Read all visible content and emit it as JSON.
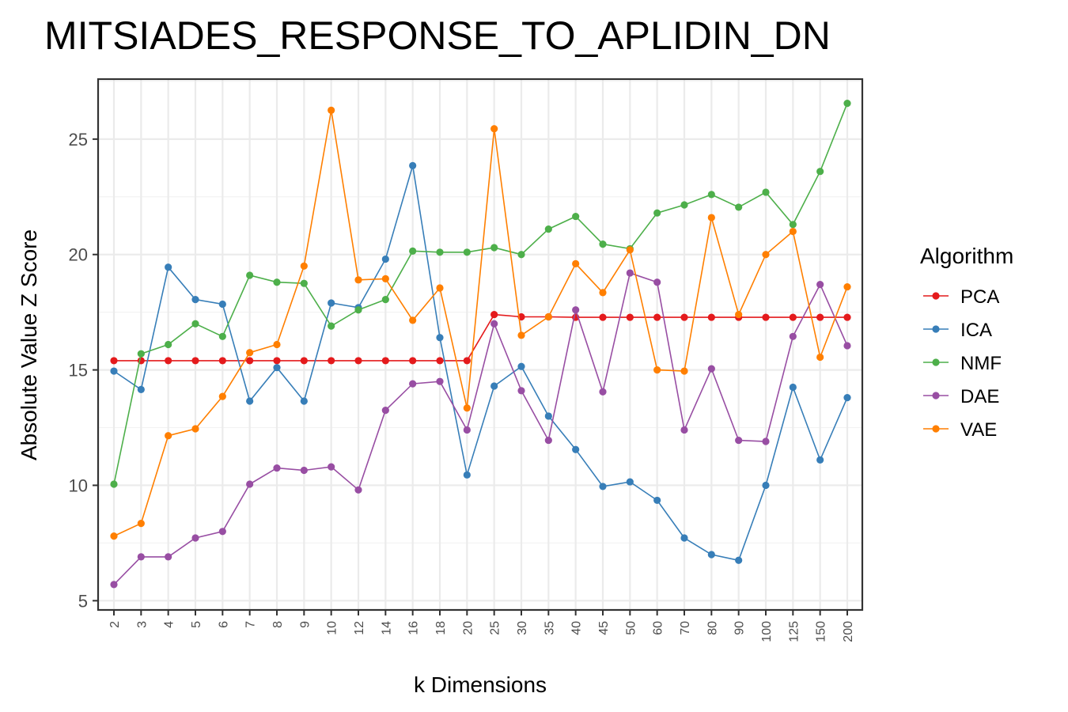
{
  "chart_data": {
    "type": "line",
    "title": "MITSIADES_RESPONSE_TO_APLIDIN_DN",
    "xlabel": "k Dimensions",
    "ylabel": "Absolute Value Z Score",
    "categories": [
      "2",
      "3",
      "4",
      "5",
      "6",
      "7",
      "8",
      "9",
      "10",
      "12",
      "14",
      "16",
      "18",
      "20",
      "25",
      "30",
      "35",
      "40",
      "45",
      "50",
      "60",
      "70",
      "80",
      "90",
      "100",
      "125",
      "150",
      "200"
    ],
    "y_ticks": [
      5,
      10,
      15,
      20,
      25
    ],
    "ylim": [
      4.6,
      27.6
    ],
    "grid": true,
    "legend": {
      "title": "Algorithm",
      "position": "right"
    },
    "series": [
      {
        "name": "PCA",
        "color": "#E41A1C",
        "values": [
          15.4,
          15.4,
          15.4,
          15.4,
          15.4,
          15.4,
          15.4,
          15.4,
          15.4,
          15.4,
          15.4,
          15.4,
          15.4,
          15.4,
          17.4,
          17.3,
          17.3,
          17.28,
          17.28,
          17.28,
          17.28,
          17.28,
          17.28,
          17.28,
          17.28,
          17.28,
          17.28,
          17.28
        ]
      },
      {
        "name": "ICA",
        "color": "#377EB8",
        "values": [
          14.95,
          14.15,
          19.45,
          18.05,
          17.85,
          13.65,
          15.1,
          13.65,
          17.9,
          17.7,
          19.8,
          23.85,
          16.4,
          10.45,
          14.3,
          15.15,
          13.0,
          11.55,
          9.95,
          10.15,
          9.35,
          7.72,
          7.0,
          6.75,
          10.0,
          14.25,
          11.1,
          13.8
        ]
      },
      {
        "name": "NMF",
        "color": "#4DAF4A",
        "values": [
          10.05,
          15.7,
          16.1,
          17.0,
          16.45,
          19.1,
          18.8,
          18.75,
          16.9,
          17.6,
          18.05,
          20.15,
          20.1,
          20.1,
          20.3,
          20.0,
          21.1,
          21.65,
          20.45,
          20.25,
          21.8,
          22.15,
          22.6,
          22.05,
          22.7,
          21.3,
          23.6,
          26.55
        ]
      },
      {
        "name": "DAE",
        "color": "#984EA3",
        "values": [
          5.7,
          6.9,
          6.9,
          7.72,
          8.0,
          10.05,
          10.75,
          10.65,
          10.8,
          9.8,
          13.25,
          14.4,
          14.5,
          12.4,
          17.0,
          14.1,
          11.95,
          17.6,
          14.05,
          19.2,
          18.8,
          12.4,
          15.05,
          11.95,
          11.9,
          16.45,
          18.7,
          16.05
        ]
      },
      {
        "name": "VAE",
        "color": "#FF7F00",
        "values": [
          7.8,
          8.35,
          12.15,
          12.45,
          13.85,
          15.75,
          16.1,
          19.5,
          26.25,
          18.9,
          18.95,
          17.15,
          18.55,
          13.35,
          25.45,
          16.5,
          17.3,
          19.6,
          18.35,
          20.2,
          15.0,
          14.95,
          21.6,
          17.4,
          20.0,
          21.0,
          15.55,
          18.6
        ]
      }
    ]
  }
}
